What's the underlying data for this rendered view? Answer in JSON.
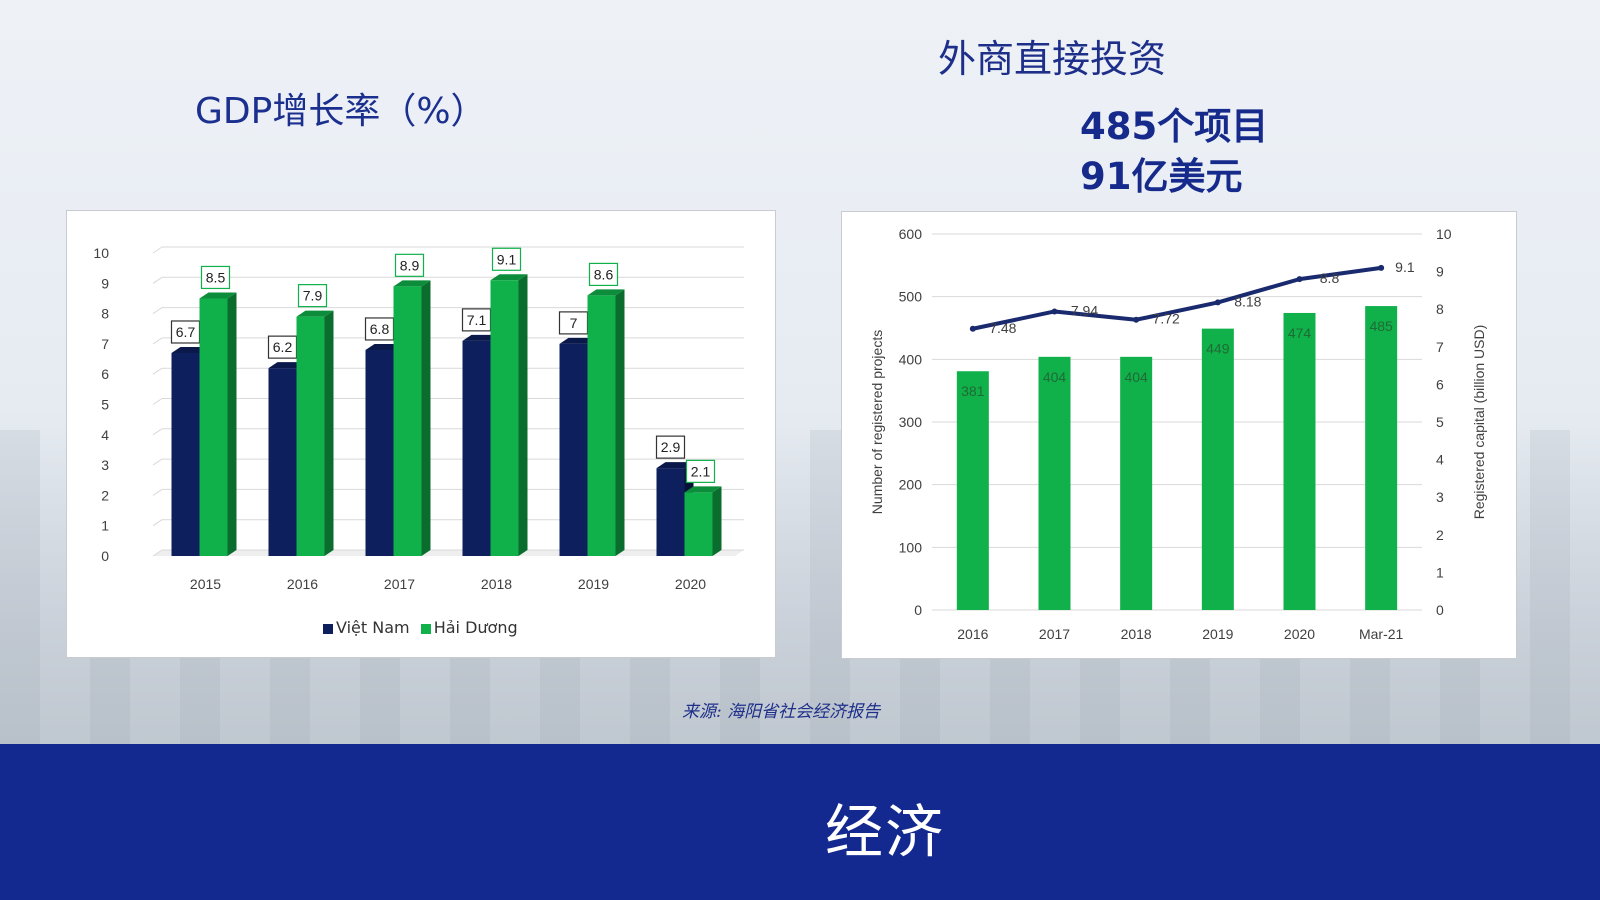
{
  "slide": {
    "gdp_title": "GDP增长率（%）",
    "fdi_title": "外商直接投资",
    "stat_projects": "485个项目",
    "stat_capital": "91亿美元",
    "source": "来源: 海阳省社会经济报告",
    "footer_title": "经济"
  },
  "colors": {
    "navy": "#0d1f5c",
    "green": "#10b04a",
    "line_navy": "#1a2a6e",
    "band": "#13298f"
  },
  "chart_data": [
    {
      "type": "bar",
      "title": "",
      "categories": [
        "2015",
        "2016",
        "2017",
        "2018",
        "2019",
        "2020"
      ],
      "series": [
        {
          "name": "Việt Nam",
          "values": [
            6.7,
            6.2,
            6.8,
            7.1,
            7,
            2.9
          ]
        },
        {
          "name": "Hải Dương",
          "values": [
            8.5,
            7.9,
            8.9,
            9.1,
            8.6,
            2.1
          ]
        }
      ],
      "value_labels": {
        "Việt Nam": [
          "6.7",
          "6.2",
          "6.8",
          "7.1",
          "7",
          "2.9"
        ],
        "Hải Dương": [
          "8.5",
          "7.9",
          "8.9",
          "9.1",
          "8.6",
          "2.1"
        ]
      },
      "ylim": [
        0,
        10
      ],
      "yticks": [
        "0",
        "1",
        "2",
        "3",
        "4",
        "5",
        "6",
        "7",
        "8",
        "9",
        "10"
      ],
      "grid": true,
      "legend": "bottom",
      "style": "3d-clustered"
    },
    {
      "type": "bar+line",
      "categories": [
        "2016",
        "2017",
        "2018",
        "2019",
        "2020",
        "Mar-21"
      ],
      "bars": {
        "name": "",
        "values": [
          381,
          404,
          404,
          449,
          474,
          485
        ],
        "labels": [
          "381",
          "404",
          "404",
          "449",
          "474",
          "485"
        ]
      },
      "line": {
        "name": "",
        "values": [
          7.48,
          7.94,
          7.72,
          8.18,
          8.8,
          9.1
        ],
        "labels": [
          "7.48",
          "7.94",
          "7.72",
          "8.18",
          "8.8",
          "9.1"
        ]
      },
      "ylabel_left": "Number of registered projects",
      "ylabel_right": "Registered capital (billion USD)",
      "ylim_left": [
        0,
        600
      ],
      "yticks_left": [
        "0",
        "100",
        "200",
        "300",
        "400",
        "500",
        "600"
      ],
      "ylim_right": [
        0,
        10
      ],
      "yticks_right": [
        "0",
        "1",
        "2",
        "3",
        "4",
        "5",
        "6",
        "7",
        "8",
        "9",
        "10"
      ],
      "grid": true,
      "legend": "none"
    }
  ]
}
